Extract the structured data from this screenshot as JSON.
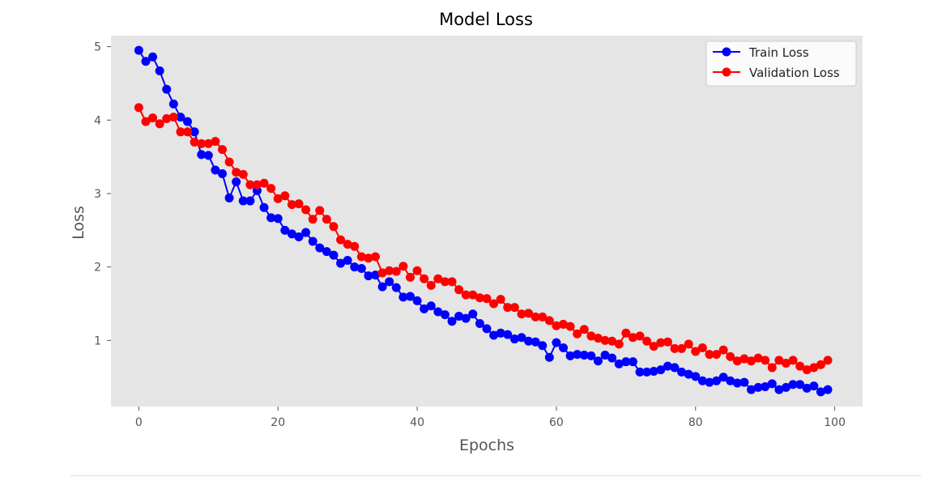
{
  "chart_data": {
    "type": "line",
    "title": "Model Loss",
    "xlabel": "Epochs",
    "ylabel": "Loss",
    "xlim": [
      -4,
      104
    ],
    "ylim": [
      0.1,
      5.15
    ],
    "x_ticks": [
      0,
      20,
      40,
      60,
      80,
      100
    ],
    "y_ticks": [
      1,
      2,
      3,
      4,
      5
    ],
    "grid": false,
    "legend": "top-right",
    "plot_background": "#e5e5e5",
    "series": [
      {
        "name": "Train Loss",
        "color": "#0000ff",
        "marker": "circle",
        "values": [
          4.95,
          4.8,
          4.86,
          4.67,
          4.42,
          4.22,
          4.04,
          3.98,
          3.84,
          3.53,
          3.52,
          3.32,
          3.27,
          2.94,
          3.16,
          2.9,
          2.9,
          3.04,
          2.81,
          2.67,
          2.66,
          2.5,
          2.45,
          2.41,
          2.47,
          2.35,
          2.26,
          2.21,
          2.16,
          2.05,
          2.09,
          2.0,
          1.98,
          1.88,
          1.89,
          1.73,
          1.8,
          1.72,
          1.59,
          1.6,
          1.54,
          1.43,
          1.47,
          1.39,
          1.35,
          1.26,
          1.33,
          1.3,
          1.36,
          1.23,
          1.16,
          1.07,
          1.1,
          1.08,
          1.02,
          1.04,
          0.99,
          0.98,
          0.93,
          0.77,
          0.97,
          0.9,
          0.79,
          0.81,
          0.8,
          0.79,
          0.72,
          0.8,
          0.76,
          0.68,
          0.71,
          0.71,
          0.57,
          0.57,
          0.58,
          0.6,
          0.65,
          0.63,
          0.57,
          0.54,
          0.51,
          0.45,
          0.43,
          0.45,
          0.5,
          0.45,
          0.42,
          0.43,
          0.33,
          0.36,
          0.37,
          0.41,
          0.33,
          0.36,
          0.4,
          0.4,
          0.35,
          0.38,
          0.3,
          0.33
        ]
      },
      {
        "name": "Validation Loss",
        "color": "#ff0000",
        "marker": "circle",
        "values": [
          4.17,
          3.98,
          4.03,
          3.95,
          4.02,
          4.04,
          3.84,
          3.84,
          3.7,
          3.68,
          3.68,
          3.71,
          3.6,
          3.43,
          3.29,
          3.26,
          3.12,
          3.12,
          3.14,
          3.07,
          2.93,
          2.97,
          2.85,
          2.86,
          2.78,
          2.65,
          2.77,
          2.65,
          2.55,
          2.37,
          2.31,
          2.28,
          2.14,
          2.12,
          2.14,
          1.92,
          1.95,
          1.94,
          2.01,
          1.86,
          1.95,
          1.84,
          1.75,
          1.84,
          1.8,
          1.8,
          1.69,
          1.62,
          1.62,
          1.58,
          1.57,
          1.5,
          1.56,
          1.45,
          1.45,
          1.36,
          1.37,
          1.32,
          1.32,
          1.27,
          1.2,
          1.22,
          1.19,
          1.09,
          1.15,
          1.06,
          1.03,
          1.0,
          0.99,
          0.95,
          1.1,
          1.04,
          1.06,
          0.99,
          0.92,
          0.97,
          0.98,
          0.89,
          0.89,
          0.95,
          0.85,
          0.9,
          0.81,
          0.81,
          0.87,
          0.78,
          0.72,
          0.75,
          0.72,
          0.76,
          0.73,
          0.63,
          0.73,
          0.69,
          0.73,
          0.65,
          0.6,
          0.63,
          0.67,
          0.73
        ]
      }
    ]
  }
}
